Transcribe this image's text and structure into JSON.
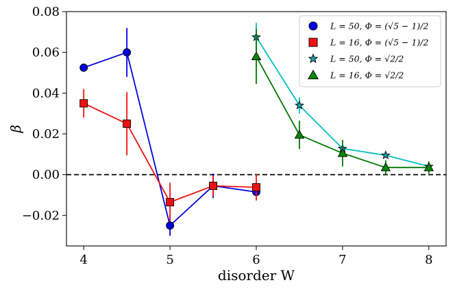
{
  "chart_data": {
    "type": "line",
    "title": "",
    "xlabel": "disorder W",
    "ylabel": "β",
    "xlim": [
      3.8,
      8.2
    ],
    "ylim": [
      -0.035,
      0.08
    ],
    "xticks": [
      4,
      5,
      6,
      7,
      8
    ],
    "xtick_labels": [
      "4",
      "5",
      "6",
      "7",
      "8"
    ],
    "yticks": [
      -0.02,
      0.0,
      0.02,
      0.04,
      0.06,
      0.08
    ],
    "ytick_labels": [
      "−0.02",
      "0.00",
      "0.02",
      "0.04",
      "0.06",
      "0.08"
    ],
    "reference_line": {
      "y": 0.0,
      "style": "dashed",
      "color": "#000000"
    },
    "legend_position": "top-right",
    "grid": false,
    "series": [
      {
        "name": "L = 50, Φ = (√5 − 1)/2",
        "color": "#0000dd",
        "marker": "circle",
        "marker_fill": "#0000dd",
        "x": [
          4.0,
          4.5,
          5.0,
          5.5,
          6.0
        ],
        "y": [
          0.0525,
          0.06,
          -0.025,
          -0.0055,
          -0.0085
        ],
        "err": [
          0.001,
          0.012,
          0.005,
          0.006,
          0.002
        ]
      },
      {
        "name": "L = 16, Φ = (√5 − 1)/2",
        "color": "#ee1111",
        "marker": "square",
        "marker_fill": "#ee1111",
        "x": [
          4.0,
          4.5,
          5.0,
          5.5,
          6.0
        ],
        "y": [
          0.035,
          0.025,
          -0.0135,
          -0.0055,
          -0.0062
        ],
        "err": [
          0.007,
          0.0155,
          0.0095,
          0.005,
          0.0065
        ]
      },
      {
        "name": "L = 50, Φ = √2/2",
        "color": "#00bfbf",
        "marker": "star",
        "marker_fill": "#1a9fa8",
        "x": [
          6.0,
          6.5,
          7.0,
          7.5,
          8.0
        ],
        "y": [
          0.0675,
          0.034,
          0.0128,
          0.0095,
          0.004
        ],
        "err": [
          0.007,
          0.004,
          0.002,
          0.0012,
          0.0008
        ]
      },
      {
        "name": "L = 16, Φ = √2/2",
        "color": "#007700",
        "marker": "triangle",
        "marker_fill": "#008800",
        "x": [
          6.0,
          6.5,
          7.0,
          7.5,
          8.0
        ],
        "y": [
          0.058,
          0.0195,
          0.0105,
          0.0035,
          0.0035
        ],
        "err": [
          0.0135,
          0.007,
          0.0065,
          0.0035,
          0.003
        ]
      }
    ]
  }
}
